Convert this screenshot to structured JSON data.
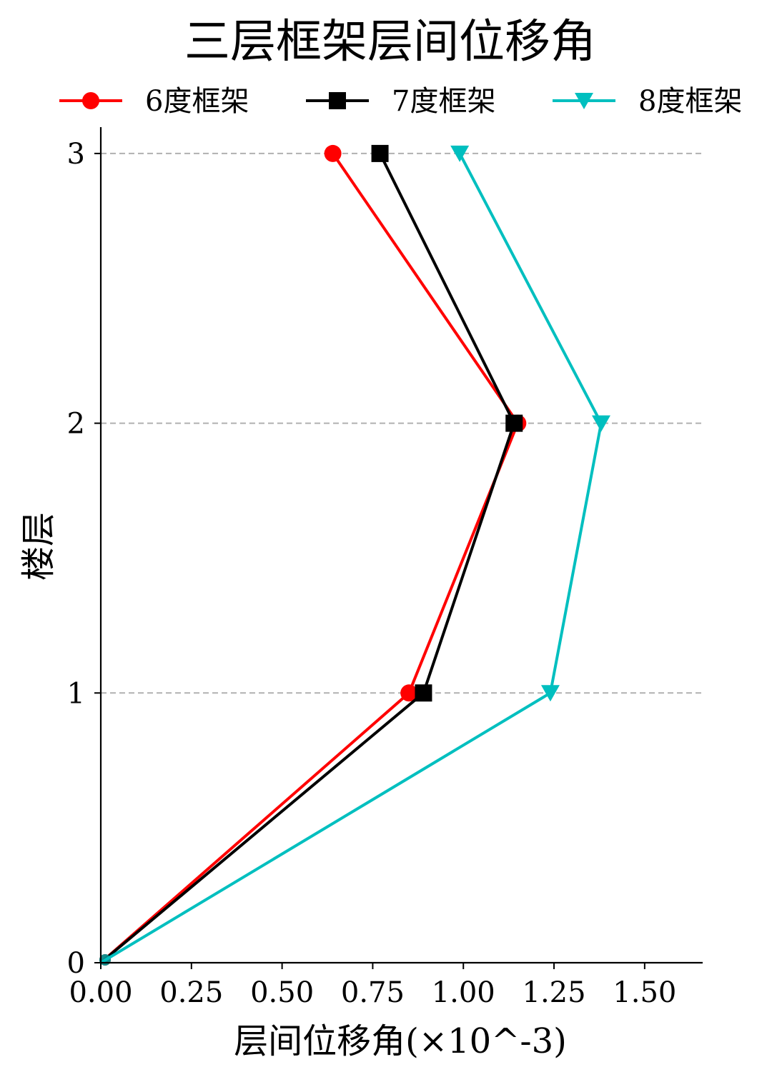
{
  "chart_data": {
    "type": "line",
    "title": "三层框架层间位移角",
    "xlabel": "层间位移角(×10^-3)",
    "ylabel": "楼层",
    "xlim": [
      0.0,
      1.66
    ],
    "ylim": [
      0,
      3.1
    ],
    "xticks": [
      "0.00",
      "0.25",
      "0.50",
      "0.75",
      "1.00",
      "1.25",
      "1.50"
    ],
    "yticks": [
      "0",
      "1",
      "2",
      "3"
    ],
    "grid": "horizontal dashed",
    "legend_position": "top",
    "series": [
      {
        "name": "6度框架",
        "color": "#ff0000",
        "marker": "circle",
        "points": [
          {
            "x": 0.0,
            "y": 0
          },
          {
            "x": 0.85,
            "y": 1
          },
          {
            "x": 1.15,
            "y": 2
          },
          {
            "x": 0.64,
            "y": 3
          }
        ]
      },
      {
        "name": "7度框架",
        "color": "#000000",
        "marker": "square",
        "points": [
          {
            "x": 0.0,
            "y": 0
          },
          {
            "x": 0.89,
            "y": 1
          },
          {
            "x": 1.14,
            "y": 2
          },
          {
            "x": 0.77,
            "y": 3
          }
        ]
      },
      {
        "name": "8度框架",
        "color": "#00bfbf",
        "marker": "triangle-down",
        "points": [
          {
            "x": 0.0,
            "y": 0
          },
          {
            "x": 1.24,
            "y": 1
          },
          {
            "x": 1.38,
            "y": 2
          },
          {
            "x": 0.99,
            "y": 3
          }
        ]
      }
    ]
  }
}
